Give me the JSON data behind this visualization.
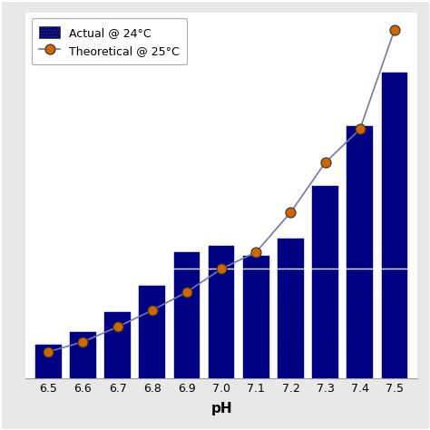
{
  "ph_values": [
    6.5,
    6.6,
    6.7,
    6.8,
    6.9,
    7.0,
    7.1,
    7.2,
    7.3,
    7.4,
    7.5
  ],
  "actual_values": [
    0.1,
    0.14,
    0.2,
    0.28,
    0.38,
    0.4,
    0.37,
    0.42,
    0.58,
    0.76,
    0.92
  ],
  "theoretical_values": [
    0.08,
    0.11,
    0.155,
    0.205,
    0.26,
    0.33,
    0.38,
    0.5,
    0.65,
    0.75,
    1.05
  ],
  "bar_color": "#00008B",
  "line_color": "#7777AA",
  "marker_face": "#CC6600",
  "marker_edge": "#333333",
  "xlabel": "pH",
  "legend_actual": "Actual @ 24°C",
  "legend_theoretical": "Theoretical @ 25°C",
  "bar_width": 0.075,
  "ylim": [
    0,
    1.1
  ],
  "xlim": [
    6.435,
    7.565
  ],
  "figure_bg": "#e8e8e8",
  "axes_bg": "#ffffff",
  "hline_y": 0.33,
  "hline_color": "#ffffff"
}
